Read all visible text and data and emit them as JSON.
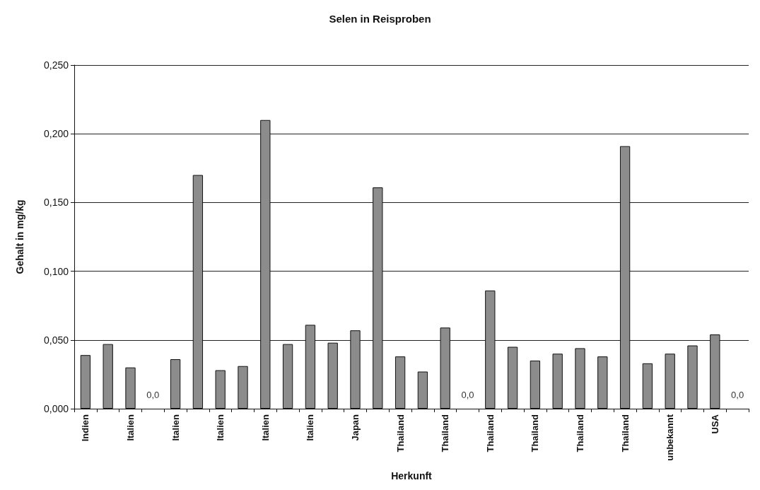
{
  "chart_data": {
    "type": "bar",
    "title": "Selen in Reisproben",
    "xlabel": "Herkunft",
    "ylabel": "Gehalt in mg/kg",
    "categories": [
      "Indien",
      null,
      "Italien",
      null,
      "Italien",
      null,
      "Italien",
      null,
      "Italien",
      null,
      "Italien",
      null,
      "Japan",
      null,
      "Thailand",
      null,
      "Thailand",
      null,
      "Thailand",
      null,
      "Thailand",
      null,
      "Thailand",
      null,
      "Thailand",
      null,
      "unbekannt",
      null,
      "USA",
      null
    ],
    "values": [
      0.039,
      0.047,
      0.03,
      0,
      0.036,
      0.17,
      0.028,
      0.031,
      0.21,
      0.047,
      0.061,
      0.048,
      0.057,
      0.161,
      0.038,
      0.027,
      0.059,
      0,
      0.086,
      0.045,
      0.035,
      0.04,
      0.044,
      0.038,
      0.191,
      0.033,
      0.04,
      0.046,
      0.054,
      0
    ],
    "value_labels": [
      null,
      null,
      null,
      "0,0",
      null,
      null,
      null,
      null,
      null,
      null,
      null,
      null,
      null,
      null,
      null,
      null,
      null,
      "0,0",
      null,
      null,
      null,
      null,
      null,
      null,
      null,
      null,
      null,
      null,
      null,
      "0,0"
    ],
    "color": "#8c8c8c",
    "ylim": [
      0,
      0.25
    ],
    "yticks": [
      {
        "value": 0,
        "label": "0,000"
      },
      {
        "value": 0.05,
        "label": "0,050"
      },
      {
        "value": 0.1,
        "label": "0,100"
      },
      {
        "value": 0.15,
        "label": "0,150"
      },
      {
        "value": 0.2,
        "label": "0,200"
      },
      {
        "value": 0.25,
        "label": "0,250"
      }
    ],
    "grid": "y"
  }
}
